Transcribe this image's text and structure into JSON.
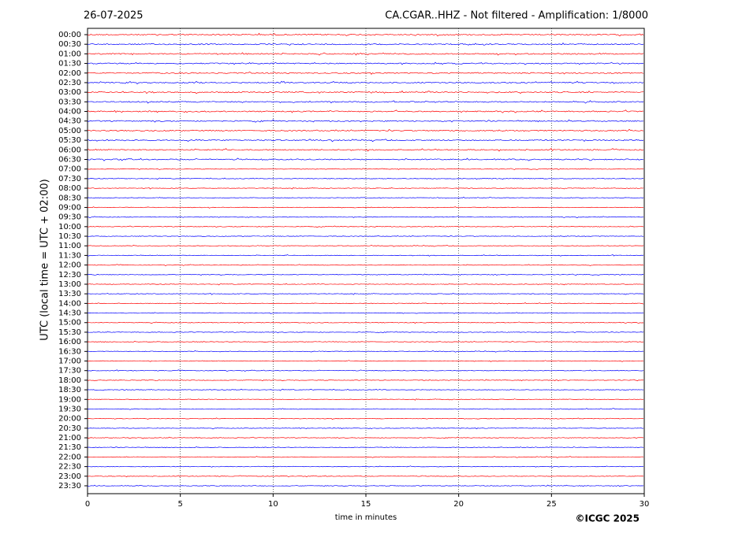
{
  "chart_data": {
    "type": "helicorder",
    "title": "CA.CGAR..HHZ - Not filtered - Amplification: 1/8000",
    "date": "26-07-2025",
    "y_label": "UTC (local time = UTC + 02:00)",
    "x_label": "time in minutes",
    "copyright": "©ICGC 2025",
    "categories": [
      "00:00",
      "00:30",
      "01:00",
      "01:30",
      "02:00",
      "02:30",
      "03:00",
      "03:30",
      "04:00",
      "04:30",
      "05:00",
      "05:30",
      "06:00",
      "06:30",
      "07:00",
      "07:30",
      "08:00",
      "08:30",
      "09:00",
      "09:30",
      "10:00",
      "10:30",
      "11:00",
      "11:30",
      "12:00",
      "12:30",
      "13:00",
      "13:30",
      "14:00",
      "14:30",
      "15:00",
      "15:30",
      "16:00",
      "16:30",
      "17:00",
      "17:30",
      "18:00",
      "18:30",
      "19:00",
      "19:30",
      "20:00",
      "20:30",
      "21:00",
      "21:30",
      "22:00",
      "22:30",
      "23:00",
      "23:30"
    ],
    "colors": [
      "#ff0000",
      "#0000ff"
    ],
    "xlim": [
      0,
      30
    ],
    "xticks": [
      0,
      5,
      10,
      15,
      20,
      25,
      30
    ],
    "grid": true
  }
}
